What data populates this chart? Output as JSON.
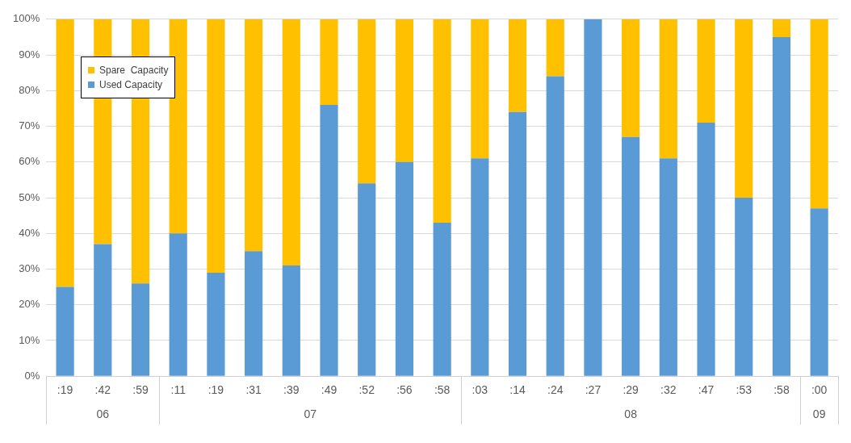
{
  "chart_data": {
    "type": "bar",
    "stacked": true,
    "categories": [
      ":19",
      ":42",
      ":59",
      ":11",
      ":19",
      ":31",
      ":39",
      ":49",
      ":52",
      ":56",
      ":58",
      ":03",
      ":14",
      ":24",
      ":27",
      ":29",
      ":32",
      ":47",
      ":53",
      ":58",
      ":00"
    ],
    "series": [
      {
        "name": "Used Capacity",
        "color": "#5b9bd5",
        "values": [
          25,
          37,
          26,
          40,
          29,
          35,
          31,
          76,
          54,
          60,
          43,
          61,
          74,
          84,
          100,
          67,
          61,
          71,
          50,
          95,
          47
        ]
      },
      {
        "name": "Spare  Capacity",
        "color": "#ffc000",
        "values": [
          75,
          63,
          74,
          60,
          71,
          65,
          69,
          24,
          46,
          40,
          57,
          39,
          26,
          16,
          0,
          33,
          39,
          29,
          50,
          5,
          53
        ]
      }
    ],
    "ylim": [
      0,
      100
    ],
    "yticks": [
      {
        "value": 0,
        "label": "0%"
      },
      {
        "value": 10,
        "label": "10%"
      },
      {
        "value": 20,
        "label": "20%"
      },
      {
        "value": 30,
        "label": "30%"
      },
      {
        "value": 40,
        "label": "40%"
      },
      {
        "value": 50,
        "label": "50%"
      },
      {
        "value": 60,
        "label": "60%"
      },
      {
        "value": 70,
        "label": "70%"
      },
      {
        "value": 80,
        "label": "80%"
      },
      {
        "value": 90,
        "label": "90%"
      },
      {
        "value": 100,
        "label": "100%"
      }
    ],
    "grid": "y",
    "legend": "top left",
    "annotations": [
      "06",
      "07",
      "08",
      "09"
    ]
  }
}
